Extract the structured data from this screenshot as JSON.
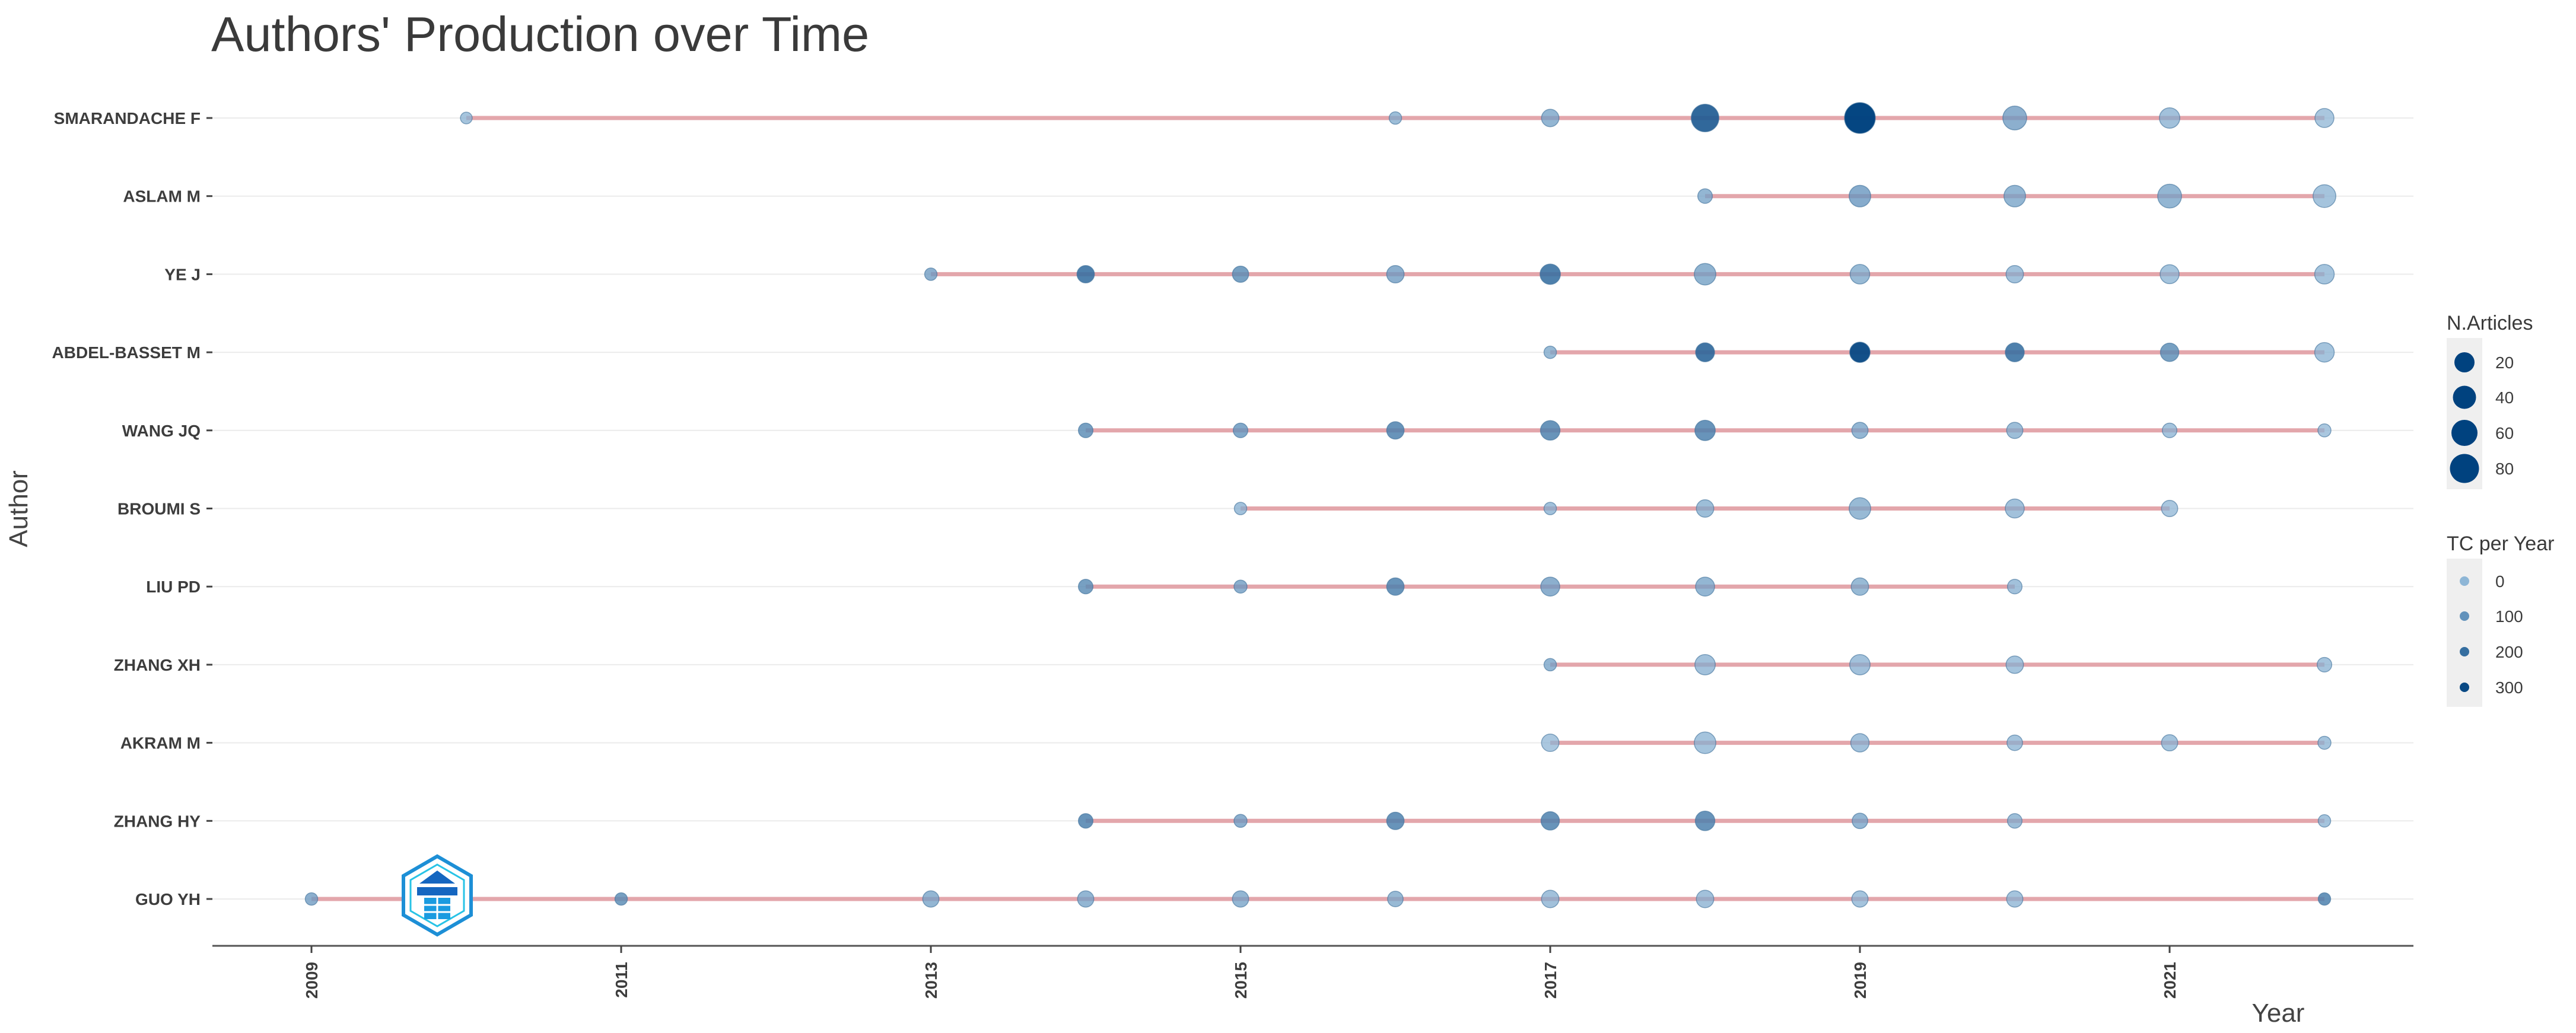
{
  "chart_data": {
    "type": "scatter",
    "title": "Authors' Production over Time",
    "xlabel": "Year",
    "ylabel": "Author",
    "xlim": [
      2008.4,
      2022.6
    ],
    "xticks": [
      2009,
      2011,
      2013,
      2015,
      2017,
      2019,
      2021
    ],
    "xtick_labels": [
      "2009",
      "2011",
      "2013",
      "2015",
      "2017",
      "2019",
      "2021"
    ],
    "authors": [
      "SMARANDACHE F",
      "ASLAM M",
      "YE J",
      "ABDEL-BASSET M",
      "WANG JQ",
      "BROUMI S",
      "LIU PD",
      "ZHANG XH",
      "AKRAM M",
      "ZHANG HY",
      "GUO YH"
    ],
    "series": [
      {
        "author": "SMARANDACHE F",
        "points": [
          {
            "year": 2010,
            "n": 3,
            "tc": 20
          },
          {
            "year": 2016,
            "n": 4,
            "tc": 40
          },
          {
            "year": 2017,
            "n": 15,
            "tc": 60
          },
          {
            "year": 2018,
            "n": 60,
            "tc": 250
          },
          {
            "year": 2019,
            "n": 80,
            "tc": 320
          },
          {
            "year": 2020,
            "n": 40,
            "tc": 80
          },
          {
            "year": 2021,
            "n": 25,
            "tc": 30
          },
          {
            "year": 2022,
            "n": 20,
            "tc": 10
          }
        ]
      },
      {
        "author": "ASLAM M",
        "points": [
          {
            "year": 2018,
            "n": 8,
            "tc": 60
          },
          {
            "year": 2019,
            "n": 30,
            "tc": 90
          },
          {
            "year": 2020,
            "n": 30,
            "tc": 60
          },
          {
            "year": 2021,
            "n": 40,
            "tc": 60
          },
          {
            "year": 2022,
            "n": 35,
            "tc": 20
          }
        ]
      },
      {
        "author": "YE J",
        "points": [
          {
            "year": 2013,
            "n": 4,
            "tc": 80
          },
          {
            "year": 2014,
            "n": 15,
            "tc": 200
          },
          {
            "year": 2015,
            "n": 12,
            "tc": 120
          },
          {
            "year": 2016,
            "n": 15,
            "tc": 80
          },
          {
            "year": 2017,
            "n": 25,
            "tc": 200
          },
          {
            "year": 2018,
            "n": 30,
            "tc": 70
          },
          {
            "year": 2019,
            "n": 22,
            "tc": 50
          },
          {
            "year": 2020,
            "n": 15,
            "tc": 30
          },
          {
            "year": 2021,
            "n": 20,
            "tc": 20
          },
          {
            "year": 2022,
            "n": 22,
            "tc": 20
          }
        ]
      },
      {
        "author": "ABDEL-BASSET M",
        "points": [
          {
            "year": 2017,
            "n": 4,
            "tc": 50
          },
          {
            "year": 2018,
            "n": 20,
            "tc": 220
          },
          {
            "year": 2019,
            "n": 25,
            "tc": 300
          },
          {
            "year": 2020,
            "n": 20,
            "tc": 200
          },
          {
            "year": 2021,
            "n": 18,
            "tc": 120
          },
          {
            "year": 2022,
            "n": 22,
            "tc": 20
          }
        ]
      },
      {
        "author": "WANG JQ",
        "points": [
          {
            "year": 2014,
            "n": 8,
            "tc": 120
          },
          {
            "year": 2015,
            "n": 8,
            "tc": 100
          },
          {
            "year": 2016,
            "n": 15,
            "tc": 150
          },
          {
            "year": 2017,
            "n": 22,
            "tc": 150
          },
          {
            "year": 2018,
            "n": 25,
            "tc": 150
          },
          {
            "year": 2019,
            "n": 12,
            "tc": 60
          },
          {
            "year": 2020,
            "n": 12,
            "tc": 40
          },
          {
            "year": 2021,
            "n": 8,
            "tc": 20
          },
          {
            "year": 2022,
            "n": 5,
            "tc": 10
          }
        ]
      },
      {
        "author": "BROUMI S",
        "points": [
          {
            "year": 2015,
            "n": 4,
            "tc": 30
          },
          {
            "year": 2017,
            "n": 4,
            "tc": 30
          },
          {
            "year": 2018,
            "n": 15,
            "tc": 40
          },
          {
            "year": 2019,
            "n": 30,
            "tc": 50
          },
          {
            "year": 2020,
            "n": 20,
            "tc": 30
          },
          {
            "year": 2021,
            "n": 12,
            "tc": 10
          }
        ]
      },
      {
        "author": "LIU PD",
        "points": [
          {
            "year": 2014,
            "n": 8,
            "tc": 120
          },
          {
            "year": 2015,
            "n": 5,
            "tc": 80
          },
          {
            "year": 2016,
            "n": 15,
            "tc": 150
          },
          {
            "year": 2017,
            "n": 20,
            "tc": 80
          },
          {
            "year": 2018,
            "n": 20,
            "tc": 60
          },
          {
            "year": 2019,
            "n": 15,
            "tc": 50
          },
          {
            "year": 2020,
            "n": 8,
            "tc": 30
          }
        ]
      },
      {
        "author": "ZHANG XH",
        "points": [
          {
            "year": 2017,
            "n": 4,
            "tc": 60
          },
          {
            "year": 2018,
            "n": 25,
            "tc": 30
          },
          {
            "year": 2019,
            "n": 25,
            "tc": 30
          },
          {
            "year": 2020,
            "n": 15,
            "tc": 20
          },
          {
            "year": 2022,
            "n": 8,
            "tc": 20
          }
        ]
      },
      {
        "author": "AKRAM M",
        "points": [
          {
            "year": 2017,
            "n": 15,
            "tc": 10
          },
          {
            "year": 2018,
            "n": 30,
            "tc": 20
          },
          {
            "year": 2019,
            "n": 18,
            "tc": 30
          },
          {
            "year": 2020,
            "n": 10,
            "tc": 20
          },
          {
            "year": 2021,
            "n": 12,
            "tc": 20
          },
          {
            "year": 2022,
            "n": 5,
            "tc": 20
          }
        ]
      },
      {
        "author": "ZHANG HY",
        "points": [
          {
            "year": 2014,
            "n": 8,
            "tc": 150
          },
          {
            "year": 2015,
            "n": 5,
            "tc": 80
          },
          {
            "year": 2016,
            "n": 15,
            "tc": 150
          },
          {
            "year": 2017,
            "n": 18,
            "tc": 150
          },
          {
            "year": 2018,
            "n": 22,
            "tc": 150
          },
          {
            "year": 2019,
            "n": 10,
            "tc": 60
          },
          {
            "year": 2020,
            "n": 8,
            "tc": 40
          },
          {
            "year": 2022,
            "n": 4,
            "tc": 20
          }
        ]
      },
      {
        "author": "GUO YH",
        "points": [
          {
            "year": 2009,
            "n": 4,
            "tc": 80
          },
          {
            "year": 2011,
            "n": 4,
            "tc": 120
          },
          {
            "year": 2013,
            "n": 12,
            "tc": 60
          },
          {
            "year": 2014,
            "n": 12,
            "tc": 60
          },
          {
            "year": 2015,
            "n": 12,
            "tc": 60
          },
          {
            "year": 2016,
            "n": 10,
            "tc": 50
          },
          {
            "year": 2017,
            "n": 15,
            "tc": 30
          },
          {
            "year": 2018,
            "n": 15,
            "tc": 30
          },
          {
            "year": 2019,
            "n": 12,
            "tc": 20
          },
          {
            "year": 2020,
            "n": 12,
            "tc": 20
          },
          {
            "year": 2022,
            "n": 4,
            "tc": 150
          }
        ]
      }
    ],
    "legend": {
      "size_title": "N.Articles",
      "size_values": [
        "20",
        "40",
        "60",
        "80"
      ],
      "color_title": "TC per Year",
      "color_values": [
        "0",
        "100",
        "200",
        "300"
      ],
      "placement": "right"
    },
    "grid": "horizontal",
    "line_color": "#e3a6ab",
    "point_color_low": "#8eb6d6",
    "point_color_high": "#00427f"
  }
}
